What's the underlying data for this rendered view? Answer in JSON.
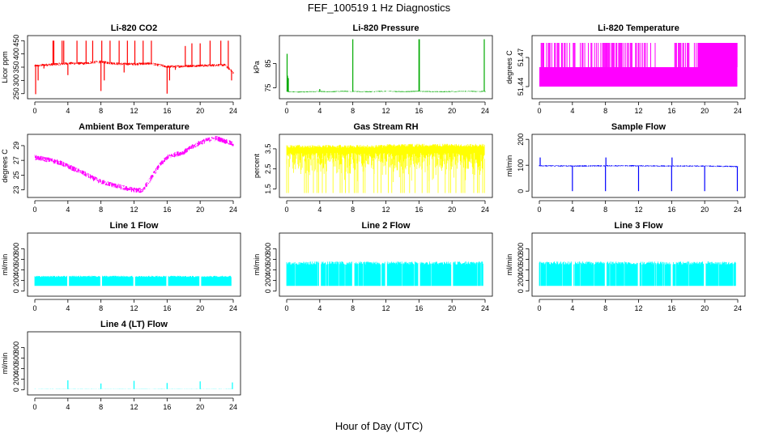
{
  "figure": {
    "title": "FEF_100519  1 Hz Diagnostics",
    "xlabel": "Hour of Day (UTC)"
  },
  "chart_data": [
    {
      "type": "line",
      "title": "Li-820 CO2",
      "ylabel": "Licor ppm",
      "color": "#ff0000",
      "xlim": [
        0,
        24
      ],
      "ylim": [
        240,
        460
      ],
      "xticks": [
        0,
        4,
        8,
        12,
        16,
        20,
        24
      ],
      "yticks": [
        250,
        300,
        350,
        400,
        450
      ],
      "ytick_labels": [
        "250",
        "300",
        "350",
        "400",
        "450"
      ],
      "x": [
        0,
        1,
        2,
        3,
        4,
        5,
        6,
        7,
        8,
        9,
        10,
        11,
        12,
        13,
        14,
        15,
        16,
        17,
        18,
        19,
        20,
        21,
        22,
        23,
        24
      ],
      "y": [
        355,
        358,
        360,
        362,
        364,
        365,
        364,
        368,
        370,
        366,
        363,
        362,
        362,
        363,
        364,
        358,
        352,
        352,
        354,
        355,
        356,
        356,
        358,
        358,
        330
      ],
      "noise": 5,
      "spikes": [
        {
          "x": 0.1,
          "y": 248
        },
        {
          "x": 0.4,
          "y": 300
        },
        {
          "x": 1.1,
          "y": 345
        },
        {
          "x": 2.2,
          "y": 450
        },
        {
          "x": 2.3,
          "y": 450
        },
        {
          "x": 3.3,
          "y": 450
        },
        {
          "x": 3.5,
          "y": 450
        },
        {
          "x": 4.0,
          "y": 320
        },
        {
          "x": 5.1,
          "y": 450
        },
        {
          "x": 6.2,
          "y": 450
        },
        {
          "x": 7.0,
          "y": 450
        },
        {
          "x": 8.0,
          "y": 260
        },
        {
          "x": 8.1,
          "y": 450
        },
        {
          "x": 8.4,
          "y": 300
        },
        {
          "x": 9.1,
          "y": 450
        },
        {
          "x": 10.2,
          "y": 450
        },
        {
          "x": 10.8,
          "y": 330
        },
        {
          "x": 11.2,
          "y": 450
        },
        {
          "x": 12.1,
          "y": 450
        },
        {
          "x": 13.1,
          "y": 450
        },
        {
          "x": 14.1,
          "y": 450
        },
        {
          "x": 16.0,
          "y": 250
        },
        {
          "x": 16.3,
          "y": 300
        },
        {
          "x": 17.0,
          "y": 340
        },
        {
          "x": 18.2,
          "y": 430
        },
        {
          "x": 19.0,
          "y": 440
        },
        {
          "x": 20.0,
          "y": 440
        },
        {
          "x": 21.2,
          "y": 450
        },
        {
          "x": 22.5,
          "y": 450
        },
        {
          "x": 23.4,
          "y": 450
        },
        {
          "x": 23.8,
          "y": 300
        }
      ]
    },
    {
      "type": "line",
      "title": "Li-820 Pressure",
      "ylabel": "kPa",
      "color": "#00aa00",
      "xlim": [
        0,
        24
      ],
      "ylim": [
        71.5,
        95.5
      ],
      "xticks": [
        0,
        4,
        8,
        12,
        16,
        20,
        24
      ],
      "yticks": [
        75,
        85
      ],
      "ytick_labels": [
        "75",
        "85"
      ],
      "x": [
        0,
        1,
        2,
        3,
        4,
        5,
        6,
        7,
        8,
        9,
        10,
        11,
        12,
        13,
        14,
        15,
        16,
        17,
        18,
        19,
        20,
        21,
        22,
        23,
        24
      ],
      "y": [
        73.5,
        73.3,
        73.3,
        73.4,
        73.5,
        73.4,
        73.5,
        73.6,
        73.5,
        73.4,
        73.4,
        73.5,
        73.6,
        73.5,
        73.4,
        73.5,
        73.6,
        73.5,
        73.4,
        73.4,
        73.5,
        73.5,
        73.6,
        73.5,
        73.5
      ],
      "noise": 0.2,
      "spikes": [
        {
          "x": 0.05,
          "y": 89
        },
        {
          "x": 0.1,
          "y": 80
        },
        {
          "x": 0.2,
          "y": 79
        },
        {
          "x": 4.0,
          "y": 74.5
        },
        {
          "x": 8.0,
          "y": 95
        },
        {
          "x": 16.0,
          "y": 95
        },
        {
          "x": 16.05,
          "y": 95
        },
        {
          "x": 23.9,
          "y": 95
        }
      ]
    },
    {
      "type": "band",
      "title": "Li-820 Temperature",
      "ylabel": "degrees C",
      "color": "#ff00ff",
      "xlim": [
        0,
        24
      ],
      "ylim": [
        51.43,
        51.49
      ],
      "xticks": [
        0,
        4,
        8,
        12,
        16,
        20,
        24
      ],
      "yticks": [
        51.44,
        51.47
      ],
      "ytick_labels": [
        "51.44",
        "51.47"
      ],
      "band_low": 51.44,
      "band_high": 51.46,
      "spike_top": 51.485,
      "spike_density": 0.55
    },
    {
      "type": "line",
      "title": "Ambient Box Temperature",
      "ylabel": "degrees C",
      "color": "#ff00ff",
      "xlim": [
        0,
        24
      ],
      "ylim": [
        22.3,
        30.2
      ],
      "xticks": [
        0,
        4,
        8,
        12,
        16,
        20,
        24
      ],
      "yticks": [
        23,
        25,
        27,
        29
      ],
      "ytick_labels": [
        "23",
        "25",
        "27",
        "29"
      ],
      "x": [
        0,
        1,
        2,
        3,
        4,
        5,
        6,
        7,
        8,
        9,
        10,
        11,
        12,
        13,
        14,
        15,
        16,
        17,
        18,
        19,
        20,
        21,
        22,
        23,
        24
      ],
      "y": [
        27.4,
        27.2,
        27.0,
        26.7,
        26.2,
        25.7,
        25.2,
        24.6,
        24.1,
        23.8,
        23.5,
        23.2,
        23.0,
        22.9,
        24.5,
        26.2,
        27.4,
        27.8,
        28.1,
        28.8,
        29.4,
        29.8,
        30.0,
        29.6,
        29.2
      ],
      "noise": 0.35
    },
    {
      "type": "band",
      "title": "Gas Stream RH",
      "ylabel": "percent",
      "color": "#ffff00",
      "xlim": [
        0,
        24
      ],
      "ylim": [
        1.2,
        4.1
      ],
      "xticks": [
        0,
        4,
        8,
        12,
        16,
        20,
        24
      ],
      "yticks": [
        1.5,
        2.5,
        3.5
      ],
      "ytick_labels": [
        "1.5",
        "2.5",
        "3.5"
      ],
      "band_low": 1.3,
      "band_high": 3.7,
      "spike_top": 3.8,
      "spike_density": 0.0
    },
    {
      "type": "line",
      "title": "Sample Flow",
      "ylabel": "ml/min",
      "color": "#0000ff",
      "xlim": [
        0,
        24
      ],
      "ylim": [
        -15,
        210
      ],
      "xticks": [
        0,
        4,
        8,
        12,
        16,
        20,
        24
      ],
      "yticks": [
        0,
        100,
        200
      ],
      "ytick_labels": [
        "0",
        "100",
        "200"
      ],
      "x": [
        0,
        4,
        8,
        12,
        16,
        20,
        24
      ],
      "y": [
        98,
        97,
        98,
        98,
        97,
        97,
        95
      ],
      "noise": 2.5,
      "spikes": [
        {
          "x": 0.1,
          "y": 130
        },
        {
          "x": 4.0,
          "y": 0
        },
        {
          "x": 8.0,
          "y": 0
        },
        {
          "x": 8.05,
          "y": 130
        },
        {
          "x": 12.0,
          "y": 0
        },
        {
          "x": 16.0,
          "y": 0
        },
        {
          "x": 16.05,
          "y": 130
        },
        {
          "x": 20.0,
          "y": 0
        },
        {
          "x": 23.95,
          "y": 0
        }
      ]
    },
    {
      "type": "band",
      "title": "Line 1 Flow",
      "ylabel": "ml/min",
      "color": "#00ffff",
      "xlim": [
        0,
        24
      ],
      "ylim": [
        -50,
        1050
      ],
      "xticks": [
        0,
        4,
        8,
        12,
        16,
        20,
        24
      ],
      "yticks": [
        0,
        200,
        400,
        600,
        800
      ],
      "ytick_labels": [
        "0",
        "200",
        "400",
        "600",
        "800"
      ],
      "band_low": 100,
      "band_high": 290,
      "gaps": [
        4.0,
        8.0,
        12.0,
        16.0,
        20.0,
        23.9
      ]
    },
    {
      "type": "band",
      "title": "Line 2 Flow",
      "ylabel": "ml/min",
      "color": "#00ffff",
      "xlim": [
        0,
        24
      ],
      "ylim": [
        -50,
        1050
      ],
      "xticks": [
        0,
        4,
        8,
        12,
        16,
        20,
        24
      ],
      "yticks": [
        0,
        200,
        400,
        600,
        800
      ],
      "ytick_labels": [
        "0",
        "200",
        "400",
        "600",
        "800"
      ],
      "band_low": 100,
      "band_high": 560,
      "gaps": [
        4.0,
        8.0,
        12.0,
        16.0,
        20.0,
        23.9
      ]
    },
    {
      "type": "band",
      "title": "Line 3 Flow",
      "ylabel": "ml/min",
      "color": "#00ffff",
      "xlim": [
        0,
        24
      ],
      "ylim": [
        -50,
        1050
      ],
      "xticks": [
        0,
        4,
        8,
        12,
        16,
        20,
        24
      ],
      "yticks": [
        0,
        200,
        400,
        600,
        800
      ],
      "ytick_labels": [
        "0",
        "200",
        "400",
        "600",
        "800"
      ],
      "band_low": 100,
      "band_high": 560,
      "gaps": [
        4.0,
        8.0,
        12.0,
        16.0,
        20.0,
        23.9
      ]
    },
    {
      "type": "line",
      "title": "Line 4 (LT) Flow",
      "ylabel": "ml/min",
      "color": "#00ffff",
      "xlim": [
        0,
        24
      ],
      "ylim": [
        -50,
        1050
      ],
      "xticks": [
        0,
        4,
        8,
        12,
        16,
        20,
        24
      ],
      "yticks": [
        0,
        200,
        400,
        600,
        800
      ],
      "ytick_labels": [
        "0",
        "200",
        "400",
        "600",
        "800"
      ],
      "x": [
        0,
        24
      ],
      "y": [
        15,
        15
      ],
      "noise": 3,
      "spikes": [
        {
          "x": 4.0,
          "y": 180
        },
        {
          "x": 8.0,
          "y": 120
        },
        {
          "x": 12.0,
          "y": 170
        },
        {
          "x": 16.0,
          "y": 130
        },
        {
          "x": 20.0,
          "y": 160
        },
        {
          "x": 23.9,
          "y": 140
        }
      ]
    }
  ]
}
